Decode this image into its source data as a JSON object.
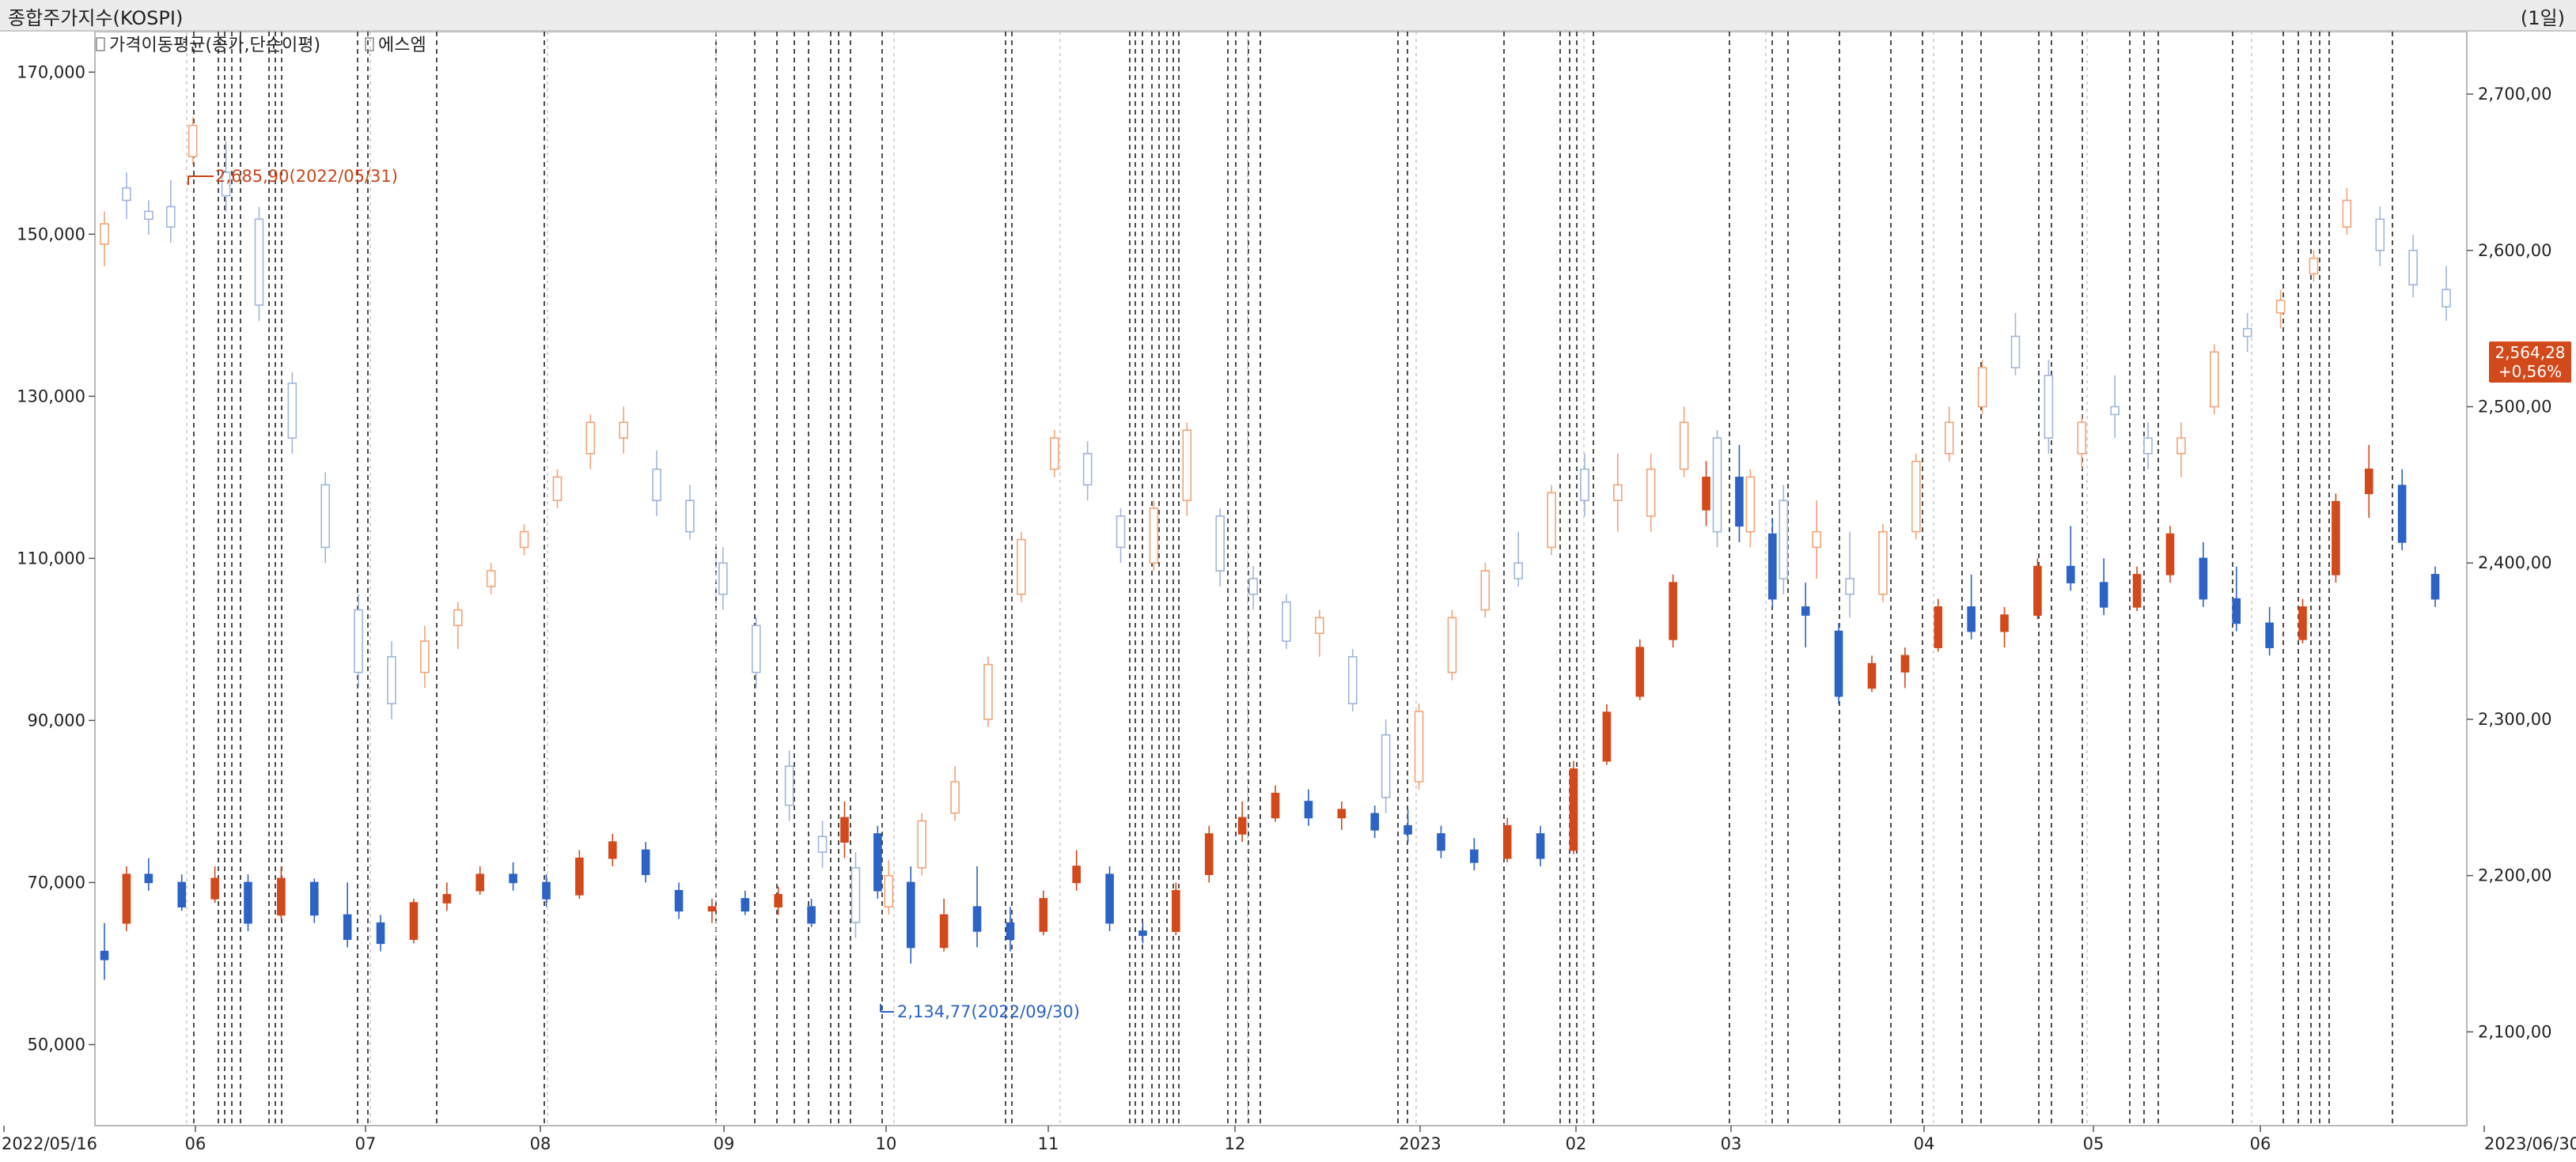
{
  "window": {
    "title": "종합주가지수(KOSPI)",
    "period": "(1일)"
  },
  "legend": [
    {
      "label": "가격이동평균(종가,단순이평)"
    },
    {
      "label": "에스엠"
    }
  ],
  "colors": {
    "up": "#d2491b",
    "down": "#2c63c5",
    "up_light": "#f0a57a",
    "down_light": "#9fb6da",
    "price_tag": "#d2491b"
  },
  "chart_data": {
    "type": "candlestick",
    "x_tick_labels": [
      "2022/05/16",
      "06",
      "07",
      "08",
      "09",
      "10",
      "11",
      "12",
      "2023",
      "02",
      "03",
      "04",
      "05",
      "06",
      "2023/06/30"
    ],
    "y_left_ticks": [
      "50,000",
      "70,000",
      "90,000",
      "110,000",
      "130,000",
      "150,000",
      "170,000"
    ],
    "y_right_ticks": [
      "2,100,00",
      "2,200,00",
      "2,300,00",
      "2,400,00",
      "2,500,00",
      "2,600,00",
      "2,700,00"
    ],
    "y_left_range": [
      40000,
      175000
    ],
    "y_right_range": [
      2040,
      2740
    ],
    "annotations": [
      {
        "text": "2,685,90(2022/05/31)",
        "type": "max"
      },
      {
        "text": "2,134,77(2022/09/30)",
        "type": "min"
      }
    ],
    "price_tag": {
      "value": "2,564,28",
      "change": "+0,56%"
    },
    "series": [
      {
        "name": "종합주가지수(KOSPI)",
        "axis": "right",
        "ohlc_points": [
          [
            0,
            2604,
            2625,
            2590,
            2617
          ],
          [
            2,
            2640,
            2650,
            2620,
            2632
          ],
          [
            4,
            2625,
            2632,
            2610,
            2620
          ],
          [
            6,
            2628,
            2645,
            2605,
            2615
          ],
          [
            8,
            2660,
            2685,
            2655,
            2680
          ],
          [
            11,
            2650,
            2670,
            2625,
            2635
          ],
          [
            14,
            2620,
            2628,
            2555,
            2565
          ],
          [
            17,
            2515,
            2522,
            2470,
            2480
          ],
          [
            20,
            2450,
            2458,
            2400,
            2410
          ],
          [
            23,
            2370,
            2380,
            2320,
            2330
          ],
          [
            26,
            2340,
            2350,
            2300,
            2310
          ],
          [
            29,
            2330,
            2360,
            2320,
            2350
          ],
          [
            32,
            2360,
            2375,
            2345,
            2370
          ],
          [
            35,
            2385,
            2400,
            2380,
            2395
          ],
          [
            38,
            2410,
            2425,
            2405,
            2420
          ],
          [
            41,
            2440,
            2460,
            2435,
            2455
          ],
          [
            44,
            2470,
            2495,
            2460,
            2490
          ],
          [
            47,
            2480,
            2500,
            2470,
            2490
          ],
          [
            50,
            2460,
            2472,
            2430,
            2440
          ],
          [
            53,
            2440,
            2450,
            2415,
            2420
          ],
          [
            56,
            2400,
            2410,
            2370,
            2380
          ],
          [
            59,
            2360,
            2365,
            2320,
            2330
          ],
          [
            62,
            2270,
            2280,
            2235,
            2245
          ],
          [
            65,
            2225,
            2235,
            2205,
            2215
          ],
          [
            68,
            2205,
            2215,
            2160,
            2170
          ],
          [
            71,
            2180,
            2210,
            2175,
            2200
          ],
          [
            74,
            2205,
            2240,
            2200,
            2235
          ],
          [
            77,
            2240,
            2270,
            2235,
            2260
          ],
          [
            80,
            2300,
            2340,
            2295,
            2335
          ],
          [
            83,
            2380,
            2420,
            2375,
            2415
          ],
          [
            86,
            2460,
            2485,
            2455,
            2480
          ],
          [
            89,
            2470,
            2478,
            2440,
            2450
          ],
          [
            92,
            2430,
            2435,
            2400,
            2410
          ],
          [
            95,
            2400,
            2440,
            2395,
            2435
          ],
          [
            98,
            2440,
            2490,
            2430,
            2485
          ],
          [
            101,
            2430,
            2435,
            2385,
            2395
          ],
          [
            104,
            2390,
            2398,
            2370,
            2380
          ],
          [
            107,
            2375,
            2380,
            2345,
            2350
          ],
          [
            110,
            2355,
            2370,
            2340,
            2365
          ],
          [
            113,
            2340,
            2345,
            2305,
            2310
          ],
          [
            116,
            2290,
            2300,
            2240,
            2250
          ],
          [
            119,
            2260,
            2310,
            2255,
            2305
          ],
          [
            122,
            2330,
            2370,
            2325,
            2365
          ],
          [
            125,
            2370,
            2400,
            2365,
            2395
          ],
          [
            128,
            2400,
            2420,
            2385,
            2390
          ],
          [
            131,
            2410,
            2450,
            2405,
            2445
          ],
          [
            134,
            2460,
            2470,
            2430,
            2440
          ],
          [
            137,
            2440,
            2470,
            2420,
            2450
          ],
          [
            140,
            2430,
            2470,
            2420,
            2460
          ],
          [
            143,
            2460,
            2500,
            2455,
            2490
          ],
          [
            146,
            2480,
            2485,
            2410,
            2420
          ],
          [
            149,
            2420,
            2460,
            2410,
            2455
          ],
          [
            152,
            2440,
            2450,
            2380,
            2390
          ],
          [
            155,
            2410,
            2440,
            2390,
            2420
          ],
          [
            158,
            2390,
            2420,
            2365,
            2380
          ],
          [
            161,
            2380,
            2425,
            2375,
            2420
          ],
          [
            164,
            2420,
            2470,
            2415,
            2465
          ],
          [
            167,
            2470,
            2500,
            2465,
            2490
          ],
          [
            170,
            2500,
            2530,
            2495,
            2525
          ],
          [
            173,
            2545,
            2560,
            2520,
            2525
          ],
          [
            176,
            2520,
            2530,
            2470,
            2480
          ],
          [
            179,
            2470,
            2495,
            2460,
            2490
          ],
          [
            182,
            2500,
            2520,
            2480,
            2495
          ],
          [
            185,
            2480,
            2490,
            2460,
            2470
          ],
          [
            188,
            2470,
            2490,
            2455,
            2480
          ],
          [
            191,
            2500,
            2540,
            2495,
            2535
          ],
          [
            194,
            2550,
            2560,
            2535,
            2545
          ],
          [
            197,
            2560,
            2575,
            2550,
            2568
          ],
          [
            200,
            2585,
            2600,
            2580,
            2595
          ],
          [
            203,
            2615,
            2640,
            2610,
            2632
          ],
          [
            206,
            2620,
            2628,
            2590,
            2600
          ],
          [
            209,
            2600,
            2610,
            2570,
            2578
          ],
          [
            212,
            2575,
            2590,
            2555,
            2564
          ]
        ]
      },
      {
        "name": "에스엠",
        "axis": "left",
        "ohlc_points": [
          [
            0,
            61500,
            65000,
            58000,
            60500
          ],
          [
            2,
            65000,
            72000,
            64000,
            71000
          ],
          [
            4,
            71000,
            73000,
            69000,
            70000
          ],
          [
            7,
            70000,
            71000,
            66500,
            67000
          ],
          [
            10,
            68000,
            72000,
            67500,
            70500
          ],
          [
            13,
            70000,
            71000,
            64000,
            65000
          ],
          [
            16,
            66000,
            72000,
            65500,
            70500
          ],
          [
            19,
            70000,
            70500,
            65000,
            66000
          ],
          [
            22,
            66000,
            70000,
            62000,
            63000
          ],
          [
            25,
            65000,
            66000,
            61500,
            62500
          ],
          [
            28,
            63000,
            68000,
            62500,
            67500
          ],
          [
            31,
            67500,
            70000,
            66500,
            68500
          ],
          [
            34,
            69000,
            72000,
            68500,
            71000
          ],
          [
            37,
            71000,
            72500,
            69000,
            70000
          ],
          [
            40,
            70000,
            71000,
            67000,
            68000
          ],
          [
            43,
            68500,
            74000,
            68000,
            73000
          ],
          [
            46,
            73000,
            76000,
            72000,
            75000
          ],
          [
            49,
            74000,
            75000,
            70000,
            71000
          ],
          [
            52,
            69000,
            70000,
            65500,
            66500
          ],
          [
            55,
            66500,
            68000,
            65000,
            67000
          ],
          [
            58,
            68000,
            69000,
            66000,
            66500
          ],
          [
            61,
            67000,
            69500,
            66000,
            68500
          ],
          [
            64,
            67000,
            68000,
            64500,
            65000
          ],
          [
            67,
            75000,
            80000,
            73000,
            78000
          ],
          [
            70,
            76000,
            77000,
            68000,
            69000
          ],
          [
            73,
            70000,
            72000,
            60000,
            62000
          ],
          [
            76,
            62000,
            68000,
            61500,
            66000
          ],
          [
            79,
            67000,
            72000,
            62000,
            64000
          ],
          [
            82,
            65000,
            67000,
            61500,
            63000
          ],
          [
            85,
            64000,
            69000,
            63500,
            68000
          ],
          [
            88,
            70000,
            74000,
            69000,
            72000
          ],
          [
            91,
            71000,
            72000,
            64000,
            65000
          ],
          [
            94,
            64000,
            65000,
            62500,
            63500
          ],
          [
            97,
            64000,
            70000,
            63500,
            69000
          ],
          [
            100,
            71000,
            77000,
            70000,
            76000
          ],
          [
            103,
            76000,
            80000,
            75000,
            78000
          ],
          [
            106,
            78000,
            82000,
            77500,
            81000
          ],
          [
            109,
            80000,
            81500,
            77000,
            78000
          ],
          [
            112,
            78000,
            80000,
            76500,
            79000
          ],
          [
            115,
            78500,
            79500,
            75500,
            76500
          ],
          [
            118,
            77000,
            79000,
            75000,
            76000
          ],
          [
            121,
            76000,
            77000,
            73000,
            74000
          ],
          [
            124,
            74000,
            75500,
            71500,
            72500
          ],
          [
            127,
            73000,
            78000,
            72500,
            77000
          ],
          [
            130,
            76000,
            77000,
            72000,
            73000
          ],
          [
            133,
            74000,
            85000,
            73500,
            84000
          ],
          [
            136,
            85000,
            92000,
            84500,
            91000
          ],
          [
            139,
            93000,
            100000,
            92500,
            99000
          ],
          [
            142,
            100000,
            108000,
            99000,
            107000
          ],
          [
            145,
            116000,
            122000,
            114000,
            120000
          ],
          [
            148,
            120000,
            124000,
            112000,
            114000
          ],
          [
            151,
            113000,
            115000,
            104000,
            105000
          ],
          [
            154,
            104000,
            107000,
            99000,
            103000
          ],
          [
            157,
            101000,
            102000,
            92000,
            93000
          ],
          [
            160,
            94000,
            98000,
            93500,
            97000
          ],
          [
            163,
            96000,
            99000,
            94000,
            98000
          ],
          [
            166,
            99000,
            105000,
            98500,
            104000
          ],
          [
            169,
            104000,
            108000,
            100000,
            101000
          ],
          [
            172,
            101000,
            104000,
            99000,
            103000
          ],
          [
            175,
            103000,
            110000,
            102500,
            109000
          ],
          [
            178,
            109000,
            114000,
            106000,
            107000
          ],
          [
            181,
            107000,
            110000,
            103000,
            104000
          ],
          [
            184,
            104000,
            109000,
            103500,
            108000
          ],
          [
            187,
            108000,
            114000,
            107000,
            113000
          ],
          [
            190,
            110000,
            112000,
            104000,
            105000
          ],
          [
            193,
            105000,
            109000,
            101000,
            102000
          ],
          [
            196,
            102000,
            104000,
            98000,
            99000
          ],
          [
            199,
            100000,
            105000,
            99500,
            104000
          ],
          [
            202,
            108000,
            118000,
            107000,
            117000
          ],
          [
            205,
            118000,
            124000,
            115000,
            121000
          ],
          [
            208,
            119000,
            121000,
            111000,
            112000
          ],
          [
            211,
            108000,
            109000,
            104000,
            105000
          ]
        ]
      }
    ]
  }
}
